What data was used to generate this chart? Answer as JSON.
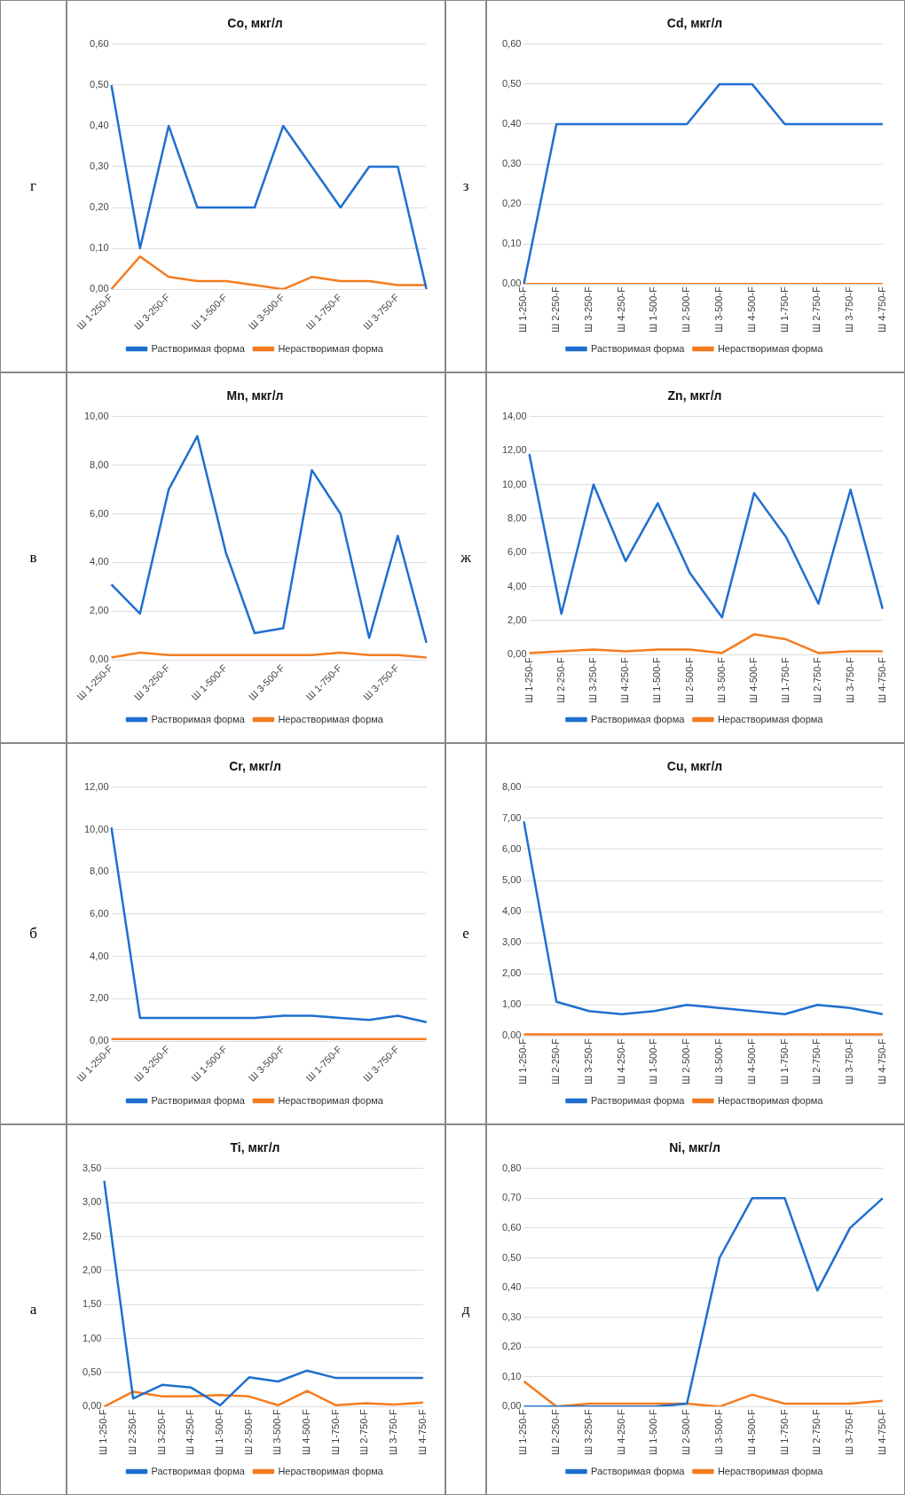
{
  "chart_data": [
    {
      "type": "line",
      "title": "Ti, мкг/л",
      "annotations": [
        "а"
      ],
      "categories": [
        "Ш 1-250-F",
        "Ш 2-250-F",
        "Ш 3-250-F",
        "Ш 4-250-F",
        "Ш 1-500-F",
        "Ш 2-500-F",
        "Ш 3-500-F",
        "Ш 4-500-F",
        "Ш 1-750-F",
        "Ш 2-750-F",
        "Ш 3-750-F",
        "Ш 4-750-F"
      ],
      "ylim": [
        0,
        3.5
      ],
      "yticks": [
        {
          "value": 0,
          "label": "0,00"
        },
        {
          "value": 0.5,
          "label": "0,50"
        },
        {
          "value": 1,
          "label": "1,00"
        },
        {
          "value": 1.5,
          "label": "1,50"
        },
        {
          "value": 2,
          "label": "2,00"
        },
        {
          "value": 2.5,
          "label": "2,50"
        },
        {
          "value": 3,
          "label": "3,00"
        },
        {
          "value": 3.5,
          "label": "3,50"
        }
      ],
      "grid": "y",
      "legend": "bottom",
      "marker": "none",
      "series": [
        {
          "name": "Растворимая форма",
          "color": "#1f6fd0",
          "values": [
            3.32,
            0.12,
            0.32,
            0.28,
            0.02,
            0.43,
            0.37,
            0.53,
            0.42,
            0.42,
            0.42,
            0.42
          ]
        },
        {
          "name": "Нерастворимая форма",
          "color": "#f47c20",
          "values": [
            0,
            0.22,
            0.15,
            0.15,
            0.17,
            0.15,
            0.02,
            0.23,
            0.02,
            0.05,
            0.03,
            0.06
          ]
        }
      ]
    },
    {
      "type": "line",
      "title": "Cr, мкг/л",
      "annotations": [
        "б"
      ],
      "categories": [
        "Ш 1-250-F",
        null,
        "Ш 3-250-F",
        null,
        "Ш 1-500-F",
        null,
        "Ш 3-500-F",
        null,
        "Ш 1-750-F",
        null,
        "Ш 3-750-F",
        null
      ],
      "ylim": [
        0,
        12
      ],
      "yticks": [
        {
          "value": 0,
          "label": "0,00"
        },
        {
          "value": 2,
          "label": "2,00"
        },
        {
          "value": 4,
          "label": "4,00"
        },
        {
          "value": 6,
          "label": "6,00"
        },
        {
          "value": 8,
          "label": "8,00"
        },
        {
          "value": 10,
          "label": "10,00"
        },
        {
          "value": 12,
          "label": "12,00"
        }
      ],
      "grid": "y",
      "legend": "bottom",
      "marker": "none",
      "series": [
        {
          "name": "Растворимая форма",
          "color": "#1f6fd0",
          "values": [
            10.1,
            1.1,
            1.1,
            1.1,
            1.1,
            1.1,
            1.2,
            1.2,
            1.1,
            1.0,
            1.2,
            0.9
          ]
        },
        {
          "name": "Нерастворимая форма",
          "color": "#f47c20",
          "values": [
            0.1,
            0.1,
            0.1,
            0.1,
            0.1,
            0.1,
            0.1,
            0.1,
            0.1,
            0.1,
            0.1,
            0.1
          ]
        }
      ]
    },
    {
      "type": "line",
      "title": "Mn, мкг/л",
      "annotations": [
        "в"
      ],
      "categories": [
        "Ш 1-250-F",
        null,
        "Ш 3-250-F",
        null,
        "Ш 1-500-F",
        null,
        "Ш 3-500-F",
        null,
        "Ш 1-750-F",
        null,
        "Ш 3-750-F",
        null
      ],
      "ylim": [
        0,
        10
      ],
      "yticks": [
        {
          "value": 0,
          "label": "0,00"
        },
        {
          "value": 2,
          "label": "2,00"
        },
        {
          "value": 4,
          "label": "4,00"
        },
        {
          "value": 6,
          "label": "6,00"
        },
        {
          "value": 8,
          "label": "8,00"
        },
        {
          "value": 10,
          "label": "10,00"
        }
      ],
      "grid": "y",
      "legend": "bottom",
      "marker": "none",
      "series": [
        {
          "name": "Растворимая форма",
          "color": "#1f6fd0",
          "values": [
            3.1,
            1.9,
            7.0,
            9.2,
            4.4,
            1.1,
            1.3,
            7.8,
            6.0,
            0.9,
            5.1,
            0.7
          ]
        },
        {
          "name": "Нерастворимая форма",
          "color": "#f47c20",
          "values": [
            0.1,
            0.3,
            0.2,
            0.2,
            0.2,
            0.2,
            0.2,
            0.2,
            0.3,
            0.2,
            0.2,
            0.1
          ]
        }
      ]
    },
    {
      "type": "line",
      "title": "Co, мкг/л",
      "annotations": [
        "г"
      ],
      "categories": [
        "Ш 1-250-F",
        null,
        "Ш 3-250-F",
        null,
        "Ш 1-500-F",
        null,
        "Ш 3-500-F",
        null,
        "Ш 1-750-F",
        null,
        "Ш 3-750-F",
        null
      ],
      "ylim": [
        0,
        0.6
      ],
      "yticks": [
        {
          "value": 0,
          "label": "0,00"
        },
        {
          "value": 0.1,
          "label": "0,10"
        },
        {
          "value": 0.2,
          "label": "0,20"
        },
        {
          "value": 0.3,
          "label": "0,30"
        },
        {
          "value": 0.4,
          "label": "0,40"
        },
        {
          "value": 0.5,
          "label": "0,50"
        },
        {
          "value": 0.6,
          "label": "0,60"
        }
      ],
      "grid": "y",
      "legend": "bottom",
      "marker": "none",
      "series": [
        {
          "name": "Растворимая форма",
          "color": "#1f6fd0",
          "values": [
            0.5,
            0.1,
            0.4,
            0.2,
            0.2,
            0.2,
            0.4,
            0.3,
            0.2,
            0.3,
            0.3,
            0.0
          ]
        },
        {
          "name": "Нерастворимая форма",
          "color": "#f47c20",
          "values": [
            0.0,
            0.08,
            0.03,
            0.02,
            0.02,
            0.01,
            0.0,
            0.03,
            0.02,
            0.02,
            0.01,
            0.01
          ]
        }
      ]
    },
    {
      "type": "line",
      "title": "Ni, мкг/л",
      "annotations": [
        "д"
      ],
      "categories": [
        "Ш 1-250-F",
        "Ш 2-250-F",
        "Ш 3-250-F",
        "Ш 4-250-F",
        "Ш 1-500-F",
        "Ш 2-500-F",
        "Ш 3-500-F",
        "Ш 4-500-F",
        "Ш 1-750-F",
        "Ш 2-750-F",
        "Ш 3-750-F",
        "Ш 4-750-F"
      ],
      "ylim": [
        0,
        0.8
      ],
      "yticks": [
        {
          "value": 0,
          "label": "0,00"
        },
        {
          "value": 0.1,
          "label": "0,10"
        },
        {
          "value": 0.2,
          "label": "0,20"
        },
        {
          "value": 0.3,
          "label": "0,30"
        },
        {
          "value": 0.4,
          "label": "0,40"
        },
        {
          "value": 0.5,
          "label": "0,50"
        },
        {
          "value": 0.6,
          "label": "0,60"
        },
        {
          "value": 0.7,
          "label": "0,70"
        },
        {
          "value": 0.8,
          "label": "0,80"
        }
      ],
      "grid": "y",
      "legend": "bottom",
      "marker": "none",
      "series": [
        {
          "name": "Растворимая форма",
          "color": "#1f6fd0",
          "values": [
            0.0,
            0.0,
            0.0,
            0.0,
            0.0,
            0.01,
            0.5,
            0.7,
            0.7,
            0.39,
            0.6,
            0.7
          ]
        },
        {
          "name": "Нерастворимая форма",
          "color": "#f47c20",
          "values": [
            0.085,
            0.0,
            0.01,
            0.01,
            0.01,
            0.01,
            0.0,
            0.04,
            0.01,
            0.01,
            0.01,
            0.02
          ]
        }
      ]
    },
    {
      "type": "line",
      "title": "Cu, мкг/л",
      "annotations": [
        "е"
      ],
      "categories": [
        "Ш 1-250-F",
        "Ш 2-250-F",
        "Ш 3-250-F",
        "Ш 4-250-F",
        "Ш 1-500-F",
        "Ш 2-500-F",
        "Ш 3-500-F",
        "Ш 4-500-F",
        "Ш 1-750-F",
        "Ш 2-750-F",
        "Ш 3-750-F",
        "Ш 4-750-F"
      ],
      "ylim": [
        0,
        8
      ],
      "yticks": [
        {
          "value": 0,
          "label": "0,00"
        },
        {
          "value": 1,
          "label": "1,00"
        },
        {
          "value": 2,
          "label": "2,00"
        },
        {
          "value": 3,
          "label": "3,00"
        },
        {
          "value": 4,
          "label": "4,00"
        },
        {
          "value": 5,
          "label": "5,00"
        },
        {
          "value": 6,
          "label": "6,00"
        },
        {
          "value": 7,
          "label": "7,00"
        },
        {
          "value": 8,
          "label": "8,00"
        }
      ],
      "grid": "y",
      "legend": "bottom",
      "marker": "none",
      "series": [
        {
          "name": "Растворимая форма",
          "color": "#1f6fd0",
          "values": [
            6.9,
            1.1,
            0.8,
            0.7,
            0.8,
            1.0,
            0.9,
            0.8,
            0.7,
            1.0,
            0.9,
            0.7
          ]
        },
        {
          "name": "Нерастворимая форма",
          "color": "#f47c20",
          "values": [
            0.05,
            0.05,
            0.05,
            0.05,
            0.05,
            0.05,
            0.05,
            0.05,
            0.05,
            0.05,
            0.05,
            0.05
          ]
        }
      ]
    },
    {
      "type": "line",
      "title": "Zn, мкг/л",
      "annotations": [
        "ж"
      ],
      "categories": [
        "Ш 1-250-F",
        "Ш 2-250-F",
        "Ш 3-250-F",
        "Ш 4-250-F",
        "Ш 1-500-F",
        "Ш 2-500-F",
        "Ш 3-500-F",
        "Ш 4-500-F",
        "Ш 1-750-F",
        "Ш 2-750-F",
        "Ш 3-750-F",
        "Ш 4-750-F"
      ],
      "ylim": [
        0,
        14
      ],
      "yticks": [
        {
          "value": 0,
          "label": "0,00"
        },
        {
          "value": 2,
          "label": "2,00"
        },
        {
          "value": 4,
          "label": "4,00"
        },
        {
          "value": 6,
          "label": "6,00"
        },
        {
          "value": 8,
          "label": "8,00"
        },
        {
          "value": 10,
          "label": "10,00"
        },
        {
          "value": 12,
          "label": "12,00"
        },
        {
          "value": 14,
          "label": "14,00"
        }
      ],
      "grid": "y",
      "legend": "bottom",
      "marker": "none",
      "series": [
        {
          "name": "Растворимая форма",
          "color": "#1f6fd0",
          "values": [
            11.8,
            2.4,
            10.0,
            5.5,
            8.9,
            4.8,
            2.2,
            9.5,
            6.9,
            3.0,
            9.7,
            2.7
          ]
        },
        {
          "name": "Нерастворимая форма",
          "color": "#f47c20",
          "values": [
            0.1,
            0.2,
            0.3,
            0.2,
            0.3,
            0.3,
            0.1,
            1.2,
            0.9,
            0.1,
            0.2,
            0.2
          ]
        }
      ]
    },
    {
      "type": "line",
      "title": "Cd, мкг/л",
      "annotations": [
        "з"
      ],
      "categories": [
        "Ш 1-250-F",
        "Ш 2-250-F",
        "Ш 3-250-F",
        "Ш 4-250-F",
        "Ш 1-500-F",
        "Ш 2-500-F",
        "Ш 3-500-F",
        "Ш 4-500-F",
        "Ш 1-750-F",
        "Ш 2-750-F",
        "Ш 3-750-F",
        "Ш 4-750-F"
      ],
      "ylim": [
        0,
        0.6
      ],
      "yticks": [
        {
          "value": 0,
          "label": "0,00"
        },
        {
          "value": 0.1,
          "label": "0,10"
        },
        {
          "value": 0.2,
          "label": "0,20"
        },
        {
          "value": 0.3,
          "label": "0,30"
        },
        {
          "value": 0.4,
          "label": "0,40"
        },
        {
          "value": 0.5,
          "label": "0,50"
        },
        {
          "value": 0.6,
          "label": "0,60"
        }
      ],
      "grid": "y",
      "legend": "bottom",
      "marker": "none",
      "series": [
        {
          "name": "Растворимая форма",
          "color": "#1f6fd0",
          "values": [
            0.0,
            0.4,
            0.4,
            0.4,
            0.4,
            0.4,
            0.5,
            0.5,
            0.4,
            0.4,
            0.4,
            0.4
          ]
        },
        {
          "name": "Нерастворимая форма",
          "color": "#f47c20",
          "values": [
            0,
            0,
            0,
            0,
            0,
            0,
            0,
            0,
            0,
            0,
            0,
            0
          ]
        }
      ]
    }
  ]
}
